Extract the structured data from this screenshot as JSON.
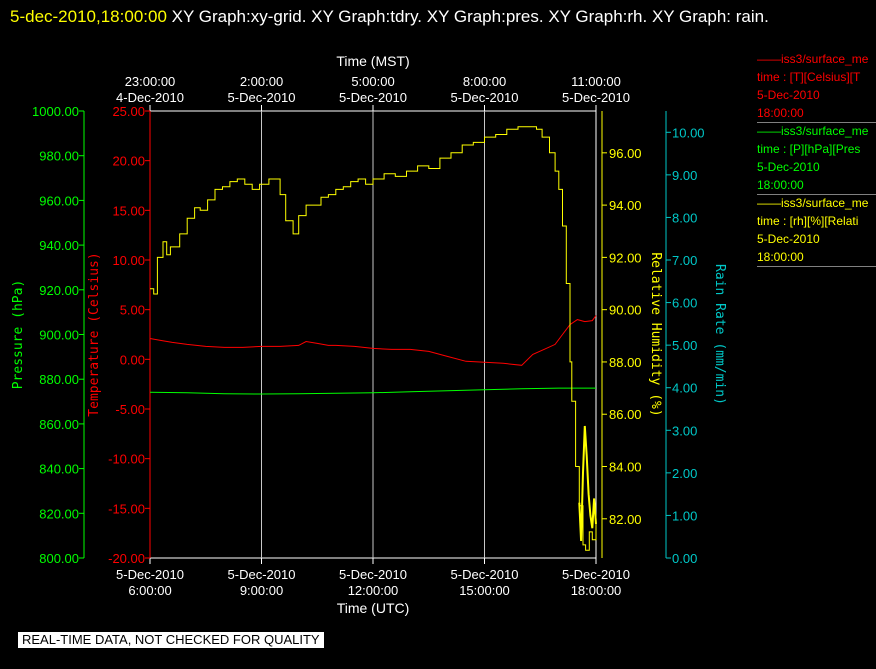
{
  "title": {
    "time": "5-dec-2010,18:00:00",
    "rest": "XY Graph:xy-grid.  XY Graph:tdry.  XY Graph:pres.  XY Graph:rh.  XY Graph: rain."
  },
  "notice": "REAL-TIME DATA, NOT CHECKED FOR QUALITY",
  "legend": [
    {
      "name": "iss3/surface_me",
      "color": "#ff0000",
      "lines": [
        "time : [T][Celsius][T",
        "5-Dec-2010",
        "18:00:00"
      ]
    },
    {
      "name": "iss3/surface_me",
      "color": "#00ff00",
      "lines": [
        "time : [P][hPa][Pres",
        "5-Dec-2010",
        "18:00:00"
      ]
    },
    {
      "name": "iss3/surface_me",
      "color": "#ffff00",
      "lines": [
        "time : [rh][%][Relati",
        "5-Dec-2010",
        "18:00:00"
      ]
    }
  ],
  "colors": {
    "temperature": "#ff0000",
    "pressure": "#00ff00",
    "humidity": "#ffff00",
    "rain": "#00c8c8",
    "grid": "#c8c8c8",
    "frame": "#ffffff"
  },
  "chart_data": {
    "type": "line",
    "x_units": "hours since 5-Dec-2010 6:00:00 UTC",
    "xlabel_bottom": "Time (UTC)",
    "xlabel_top": "Time (MST)",
    "xlim": [
      0,
      12
    ],
    "grid": true,
    "x_ticks_bottom": [
      {
        "x": 0,
        "date": "5-Dec-2010",
        "time": "6:00:00"
      },
      {
        "x": 3,
        "date": "5-Dec-2010",
        "time": "9:00:00"
      },
      {
        "x": 6,
        "date": "5-Dec-2010",
        "time": "12:00:00"
      },
      {
        "x": 9,
        "date": "5-Dec-2010",
        "time": "15:00:00"
      },
      {
        "x": 12,
        "date": "5-Dec-2010",
        "time": "18:00:00"
      }
    ],
    "x_ticks_top": [
      {
        "x": 0,
        "date": "4-Dec-2010",
        "time": "23:00:00"
      },
      {
        "x": 3,
        "date": "5-Dec-2010",
        "time": "2:00:00"
      },
      {
        "x": 6,
        "date": "5-Dec-2010",
        "time": "5:00:00"
      },
      {
        "x": 9,
        "date": "5-Dec-2010",
        "time": "8:00:00"
      },
      {
        "x": 12,
        "date": "5-Dec-2010",
        "time": "11:00:00"
      }
    ],
    "axes": {
      "pressure": {
        "label": "Pressure (hPa)",
        "range": [
          800,
          1000
        ],
        "ticks": [
          "800.00",
          "820.00",
          "840.00",
          "860.00",
          "880.00",
          "900.00",
          "920.00",
          "940.00",
          "960.00",
          "980.00",
          "1000.00"
        ]
      },
      "temperature": {
        "label": "Temperature (Celsius)",
        "range": [
          -20,
          25
        ],
        "ticks": [
          "-20.00",
          "-15.00",
          "-10.00",
          "-5.00",
          "0.00",
          "5.00",
          "10.00",
          "15.00",
          "20.00",
          "25.00"
        ]
      },
      "humidity": {
        "label": "Relative Humidity (%)",
        "range": [
          80.5,
          97.6
        ],
        "ticks": [
          "82.00",
          "84.00",
          "86.00",
          "88.00",
          "90.00",
          "92.00",
          "94.00",
          "96.00"
        ]
      },
      "rain": {
        "label": "Rain Rate (mm/min)",
        "range": [
          0,
          10.5
        ],
        "ticks": [
          "0.00",
          "1.00",
          "2.00",
          "3.00",
          "4.00",
          "5.00",
          "6.00",
          "7.00",
          "8.00",
          "9.00",
          "10.00"
        ]
      }
    },
    "series": [
      {
        "name": "iss3/surface_me",
        "quantity": "temperature",
        "axis": "temperature",
        "step": false,
        "x": [
          0,
          0.3,
          0.6,
          1,
          1.5,
          2,
          2.5,
          3,
          3.5,
          4,
          4.2,
          4.5,
          4.8,
          5,
          5.5,
          6,
          6.5,
          7,
          7.5,
          8,
          8.5,
          9,
          9.5,
          10,
          10.3,
          10.6,
          10.9,
          11.1,
          11.3,
          11.5,
          11.7,
          11.9,
          12.0
        ],
        "y": [
          2.1,
          1.9,
          1.7,
          1.5,
          1.3,
          1.2,
          1.2,
          1.3,
          1.3,
          1.4,
          1.8,
          1.6,
          1.4,
          1.4,
          1.3,
          1.1,
          1.0,
          1.0,
          0.8,
          0.3,
          -0.2,
          -0.3,
          -0.4,
          -0.6,
          0.5,
          1.0,
          1.5,
          2.5,
          3.5,
          4.0,
          3.8,
          3.9,
          4.4
        ]
      },
      {
        "name": "iss3/surface_me",
        "quantity": "pressure",
        "axis": "pressure",
        "step": false,
        "x": [
          0,
          1,
          2,
          3,
          4,
          5,
          6,
          7,
          8,
          9,
          10,
          11,
          11.5,
          12
        ],
        "y": [
          874.2,
          873.9,
          873.5,
          873.4,
          873.5,
          873.7,
          873.9,
          874.4,
          874.8,
          875.3,
          875.7,
          876.0,
          876.0,
          876.0
        ]
      },
      {
        "name": "iss3/surface_me",
        "quantity": "humidity",
        "axis": "humidity",
        "step": true,
        "x": [
          0,
          0.1,
          0.2,
          0.35,
          0.45,
          0.55,
          0.8,
          1.0,
          1.2,
          1.35,
          1.55,
          1.75,
          1.95,
          2.15,
          2.35,
          2.55,
          2.75,
          2.95,
          3.2,
          3.5,
          3.65,
          3.85,
          4.0,
          4.2,
          4.35,
          4.6,
          4.8,
          5.0,
          5.2,
          5.4,
          5.6,
          5.8,
          6.0,
          6.3,
          6.6,
          6.9,
          7.2,
          7.5,
          7.8,
          8.1,
          8.4,
          8.7,
          9.0,
          9.3,
          9.6,
          9.9,
          10.2,
          10.4,
          10.55,
          10.75,
          10.9,
          11.0,
          11.1,
          11.2,
          11.3,
          11.35,
          11.45,
          11.55,
          11.65,
          11.72,
          11.82,
          11.9,
          12.0
        ],
        "y": [
          90.8,
          90.6,
          92.0,
          92.6,
          92.1,
          92.4,
          92.9,
          93.5,
          93.9,
          93.8,
          94.2,
          94.6,
          94.7,
          94.9,
          95.0,
          94.8,
          94.6,
          94.8,
          95.0,
          94.4,
          93.4,
          92.9,
          93.6,
          94.0,
          94.0,
          94.3,
          94.4,
          94.6,
          94.7,
          94.9,
          95.0,
          94.8,
          95.0,
          95.2,
          95.1,
          95.3,
          95.5,
          95.4,
          95.8,
          96.0,
          96.3,
          96.4,
          96.6,
          96.7,
          96.9,
          97.0,
          97.0,
          96.9,
          96.6,
          96.0,
          95.3,
          94.6,
          93.2,
          91.0,
          88.0,
          86.5,
          84.0,
          82.5,
          81.0,
          80.8,
          81.5,
          81.2,
          81.8
        ]
      },
      {
        "name": "iss3/surface_me",
        "quantity": "rain",
        "axis": "rain",
        "step": false,
        "x": [
          11.55,
          11.6,
          11.65,
          11.7,
          11.75,
          11.8,
          11.85,
          11.9,
          11.95,
          12.0
        ],
        "y": [
          1.3,
          0.4,
          2.0,
          3.1,
          2.4,
          1.5,
          1.0,
          0.7,
          1.4,
          0.8
        ]
      }
    ]
  }
}
